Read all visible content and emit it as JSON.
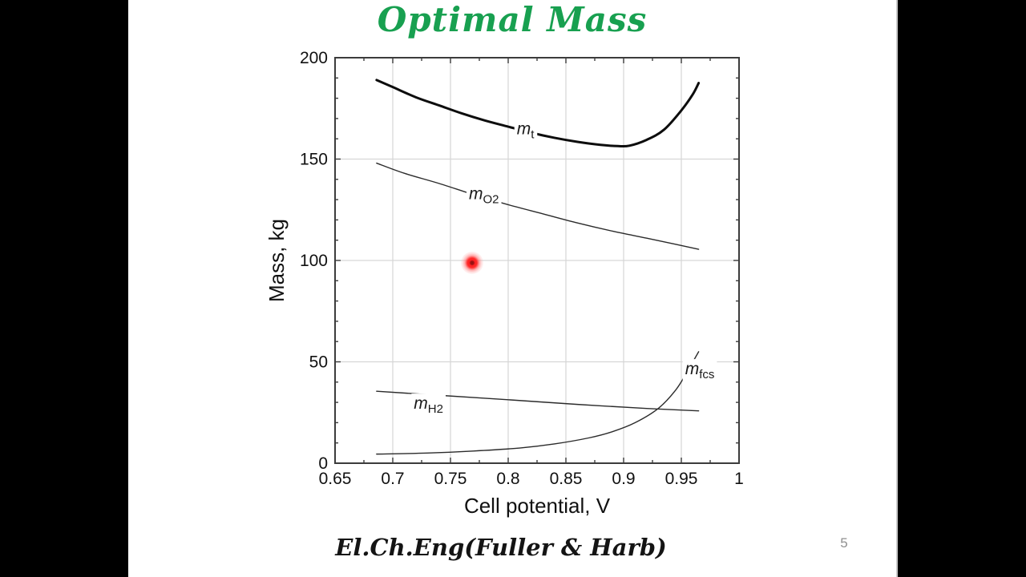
{
  "title": {
    "text": "Optimal Mass",
    "color": "#18A050"
  },
  "footer": {
    "citation": "El.Ch.Eng(Fuller & Harb)",
    "page_number": "5"
  },
  "laser_pointer": {
    "x_v": 0.769,
    "y_kg": 98.8
  },
  "chart_data": {
    "type": "line",
    "title": "",
    "xlabel": "Cell potential, V",
    "ylabel": "Mass, kg",
    "xlim": [
      0.65,
      1.0
    ],
    "ylim": [
      0,
      200
    ],
    "x_major_ticks": [
      0.65,
      0.7,
      0.75,
      0.8,
      0.85,
      0.9,
      0.95,
      1
    ],
    "x_tick_labels": [
      "0.65",
      "0.7",
      "0.75",
      "0.8",
      "0.85",
      "0.9",
      "0.95",
      "1"
    ],
    "y_major_ticks": [
      0,
      50,
      100,
      150,
      200
    ],
    "y_tick_labels": [
      "0",
      "50",
      "100",
      "150",
      "200"
    ],
    "x_minor_step": 0.025,
    "y_minor_step": 10,
    "grid": true,
    "grid_color": "#d6d6d6",
    "axis_color": "#3c3c3c",
    "legend_position": "inline-labels",
    "series": [
      {
        "name": "total-mass",
        "label": {
          "main": "m",
          "sub": "t",
          "at": [
            0.815,
            165
          ]
        },
        "color": "#0d0d0d",
        "stroke_width": 3,
        "points": [
          [
            0.686,
            189
          ],
          [
            0.7,
            185.5
          ],
          [
            0.72,
            180.5
          ],
          [
            0.74,
            176.5
          ],
          [
            0.76,
            172.5
          ],
          [
            0.78,
            169
          ],
          [
            0.8,
            166
          ],
          [
            0.82,
            163
          ],
          [
            0.84,
            160.5
          ],
          [
            0.86,
            158.5
          ],
          [
            0.88,
            157
          ],
          [
            0.895,
            156.4
          ],
          [
            0.905,
            156.6
          ],
          [
            0.92,
            159.5
          ],
          [
            0.935,
            164.5
          ],
          [
            0.95,
            174
          ],
          [
            0.96,
            182
          ],
          [
            0.965,
            187.5
          ]
        ]
      },
      {
        "name": "oxygen-mass",
        "label": {
          "main": "m",
          "sub": "O2",
          "at": [
            0.779,
            133
          ]
        },
        "color": "#2b2b2b",
        "stroke_width": 1.4,
        "points": [
          [
            0.686,
            148
          ],
          [
            0.71,
            143
          ],
          [
            0.74,
            138
          ],
          [
            0.77,
            132.5
          ],
          [
            0.8,
            127.5
          ],
          [
            0.83,
            123
          ],
          [
            0.86,
            118.5
          ],
          [
            0.89,
            114.5
          ],
          [
            0.92,
            111
          ],
          [
            0.945,
            108
          ],
          [
            0.965,
            105.5
          ]
        ]
      },
      {
        "name": "hydrogen-mass",
        "label": {
          "main": "m",
          "sub": "H2",
          "at": [
            0.731,
            29.6
          ]
        },
        "color": "#2b2b2b",
        "stroke_width": 1.4,
        "points": [
          [
            0.686,
            35.5
          ],
          [
            0.74,
            33.5
          ],
          [
            0.8,
            31.3
          ],
          [
            0.86,
            29
          ],
          [
            0.92,
            27
          ],
          [
            0.965,
            25.8
          ]
        ]
      },
      {
        "name": "fuel-cell-system-mass",
        "label": {
          "main": "m",
          "sub": "fcs",
          "at": [
            0.966,
            46.6
          ]
        },
        "color": "#2b2b2b",
        "stroke_width": 1.4,
        "points": [
          [
            0.686,
            4.5
          ],
          [
            0.73,
            5
          ],
          [
            0.77,
            6
          ],
          [
            0.81,
            7.5
          ],
          [
            0.84,
            9.5
          ],
          [
            0.87,
            12.5
          ],
          [
            0.89,
            15.5
          ],
          [
            0.91,
            20
          ],
          [
            0.93,
            27
          ],
          [
            0.945,
            36
          ],
          [
            0.955,
            45
          ],
          [
            0.965,
            55
          ]
        ]
      }
    ]
  }
}
